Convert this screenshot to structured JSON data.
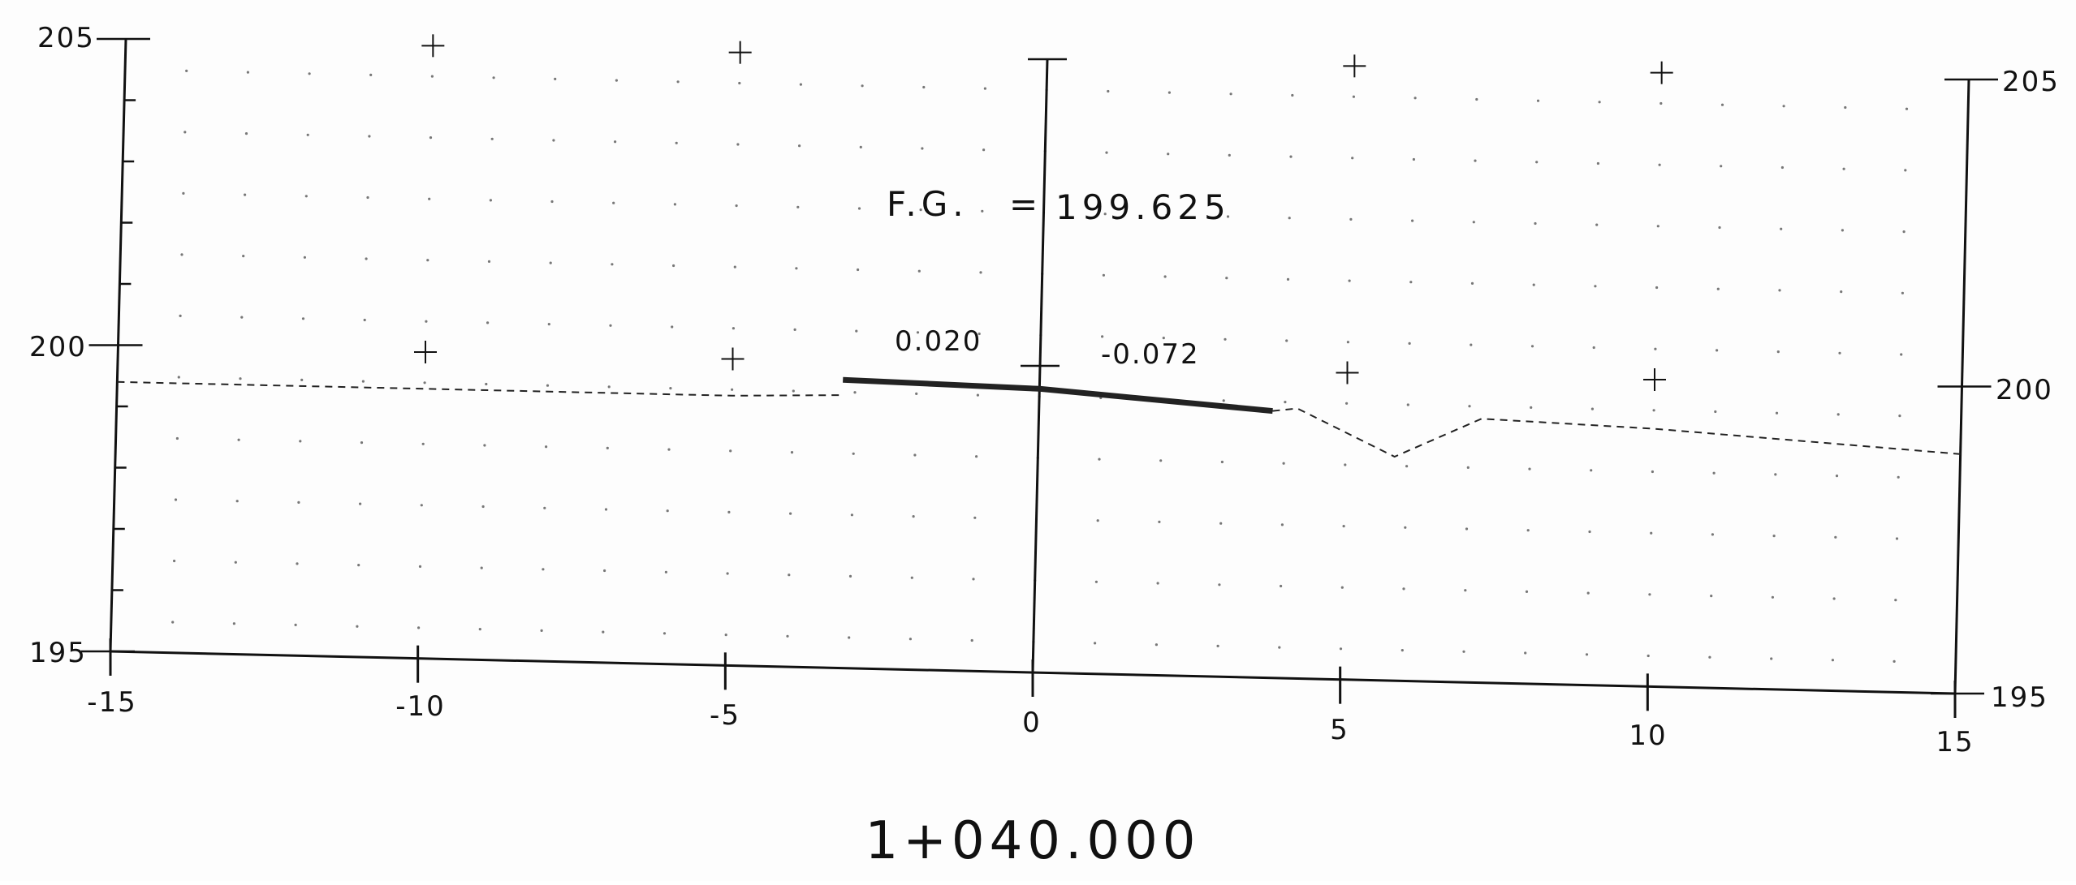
{
  "drawing": {
    "station": "1+040.000",
    "finished_grade": {
      "label": "F.G.",
      "equals": "=",
      "value": "199.625"
    },
    "slopes": {
      "left": "0.020",
      "right": "-0.072"
    }
  },
  "axes": {
    "x_ticks": [
      "-15",
      "-10",
      "-5",
      "0",
      "5",
      "10",
      "15"
    ],
    "y_left_ticks": [
      "195",
      "200",
      "205"
    ],
    "y_right_ticks": [
      "195",
      "200",
      "205"
    ]
  },
  "chart_data": {
    "type": "line",
    "title": "1+040.000",
    "xlabel": "",
    "ylabel": "",
    "xlim": [
      -15,
      15
    ],
    "ylim": [
      195,
      205
    ],
    "x_ticks": [
      -15,
      -10,
      -5,
      0,
      5,
      10,
      15
    ],
    "y_ticks": [
      195,
      200,
      205
    ],
    "grid": true,
    "series": [
      {
        "style": "dashed",
        "points": [
          [
            -15,
            199.4
          ],
          [
            -10,
            199.4
          ],
          [
            -5,
            199.4
          ],
          [
            -3.2,
            199.45
          ]
        ]
      },
      {
        "style": "solid-thick",
        "points": [
          [
            -3.2,
            199.7
          ],
          [
            0,
            199.625
          ],
          [
            3.8,
            199.35
          ]
        ]
      },
      {
        "style": "dashed",
        "points": [
          [
            3.8,
            199.35
          ],
          [
            4.2,
            199.4
          ],
          [
            5.8,
            198.65
          ],
          [
            7.2,
            199.3
          ],
          [
            10,
            199.2
          ],
          [
            15,
            198.9
          ]
        ]
      }
    ]
  }
}
